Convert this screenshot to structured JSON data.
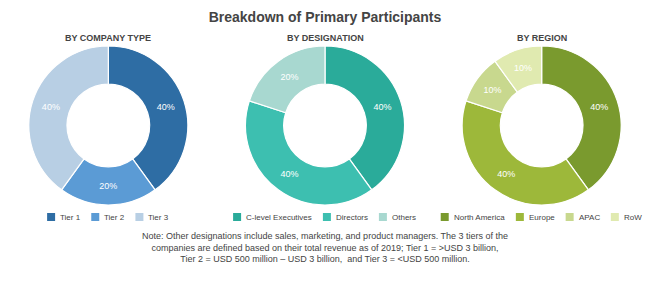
{
  "chart_data": [
    {
      "type": "pie",
      "title": "Breakdown of Primary Participants",
      "subtitle": "BY COMPANY TYPE",
      "categories": [
        "Tier 1",
        "Tier 2",
        "Tier 3"
      ],
      "values": [
        40,
        20,
        40
      ],
      "value_labels": [
        "40%",
        "20%",
        "40%"
      ],
      "colors": [
        "#2e6da4",
        "#5b9bd5",
        "#b8cfe4"
      ],
      "data_labels": true,
      "annotations": [
        "Note: Other designations include sales, marketing, and product managers. The 3 tiers of the\ncompanies are defined based on their total revenue as of 2019; Tier 1 = >USD 3 billion,\nTier 2 = USD 500 million – USD 3 billion,  and Tier 3 = <USD 500 million."
      ]
    },
    {
      "type": "pie",
      "subtitle": "BY DESIGNATION",
      "categories": [
        "C-level Executives",
        "Directors",
        "Others"
      ],
      "values": [
        40,
        40,
        20
      ],
      "value_labels": [
        "40%",
        "40%",
        "20%"
      ],
      "colors": [
        "#2aab9a",
        "#3dbfb0",
        "#a8d8d0"
      ],
      "data_labels": true
    },
    {
      "type": "pie",
      "subtitle": "BY REGION",
      "categories": [
        "North America",
        "Europe",
        "APAC",
        "RoW"
      ],
      "values": [
        40,
        40,
        10,
        10
      ],
      "value_labels": [
        "40%",
        "40%",
        "10%",
        "10%"
      ],
      "colors": [
        "#7a9a2e",
        "#9db83a",
        "#c8d88e",
        "#e0eab0"
      ],
      "data_labels": true
    }
  ]
}
